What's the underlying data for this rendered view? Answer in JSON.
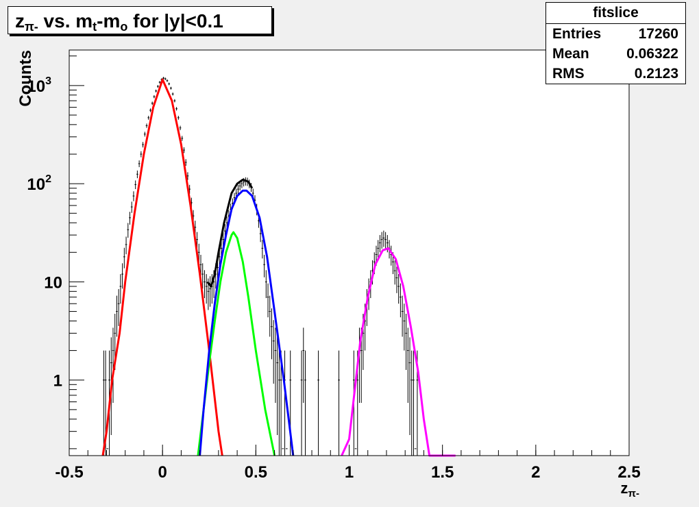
{
  "title": {
    "z_base": "z",
    "z_sub": "π-",
    "middle": " vs. m",
    "t_sub": "t",
    "dash_m": "-m",
    "o_sub": "o",
    "rest": " for |y|<0.1"
  },
  "stats": {
    "name": "fitslice",
    "rows": [
      {
        "key": "Entries",
        "value": "17260"
      },
      {
        "key": "Mean",
        "value": "0.06322"
      },
      {
        "key": "RMS",
        "value": "0.2123"
      }
    ]
  },
  "chart_data": {
    "type": "line",
    "title": "zπ- vs. mt-mo for |y|<0.1",
    "xlabel": "zπ",
    "ylabel": "Counts",
    "xlim": [
      -0.5,
      2.5
    ],
    "ylim": [
      0.17,
      2300
    ],
    "yscale": "log",
    "grid": false,
    "legend": "none",
    "x_ticks": [
      {
        "value": -0.5,
        "label": "-0.5"
      },
      {
        "value": 0,
        "label": "0"
      },
      {
        "value": 0.5,
        "label": "0.5"
      },
      {
        "value": 1,
        "label": "1"
      },
      {
        "value": 1.5,
        "label": "1.5"
      },
      {
        "value": 2,
        "label": "2"
      },
      {
        "value": 2.5,
        "label": "2.5"
      }
    ],
    "y_ticks": [
      {
        "value": 1,
        "label": "1",
        "exp": ""
      },
      {
        "value": 10,
        "label": "10",
        "exp": ""
      },
      {
        "value": 100,
        "label": "10",
        "exp": "2"
      },
      {
        "value": 1000,
        "label": "10",
        "exp": "3"
      }
    ],
    "histogram": {
      "color": "#000000",
      "points": [
        [
          -0.315,
          1
        ],
        [
          -0.305,
          1
        ],
        [
          -0.295,
          0.2
        ],
        [
          -0.285,
          1
        ],
        [
          -0.275,
          1.5
        ],
        [
          -0.265,
          2
        ],
        [
          -0.255,
          3
        ],
        [
          -0.245,
          5
        ],
        [
          -0.235,
          6
        ],
        [
          -0.225,
          9
        ],
        [
          -0.215,
          12
        ],
        [
          -0.205,
          18
        ],
        [
          -0.195,
          24
        ],
        [
          -0.185,
          34
        ],
        [
          -0.175,
          45
        ],
        [
          -0.165,
          58
        ],
        [
          -0.155,
          75
        ],
        [
          -0.145,
          98
        ],
        [
          -0.135,
          125
        ],
        [
          -0.125,
          160
        ],
        [
          -0.115,
          200
        ],
        [
          -0.105,
          250
        ],
        [
          -0.095,
          320
        ],
        [
          -0.085,
          390
        ],
        [
          -0.075,
          470
        ],
        [
          -0.065,
          560
        ],
        [
          -0.055,
          660
        ],
        [
          -0.045,
          770
        ],
        [
          -0.035,
          880
        ],
        [
          -0.025,
          980
        ],
        [
          -0.015,
          1080
        ],
        [
          -0.005,
          1150
        ],
        [
          0.005,
          1190
        ],
        [
          0.015,
          1170
        ],
        [
          0.025,
          1120
        ],
        [
          0.035,
          1040
        ],
        [
          0.045,
          940
        ],
        [
          0.055,
          820
        ],
        [
          0.065,
          700
        ],
        [
          0.075,
          580
        ],
        [
          0.085,
          470
        ],
        [
          0.095,
          370
        ],
        [
          0.105,
          290
        ],
        [
          0.115,
          220
        ],
        [
          0.125,
          165
        ],
        [
          0.135,
          120
        ],
        [
          0.145,
          88
        ],
        [
          0.155,
          64
        ],
        [
          0.165,
          47
        ],
        [
          0.175,
          36
        ],
        [
          0.185,
          27
        ],
        [
          0.195,
          20
        ],
        [
          0.205,
          15
        ],
        [
          0.215,
          12
        ],
        [
          0.225,
          10
        ],
        [
          0.235,
          9
        ],
        [
          0.245,
          8
        ],
        [
          0.255,
          8.5
        ],
        [
          0.265,
          9
        ],
        [
          0.275,
          10
        ],
        [
          0.285,
          12
        ],
        [
          0.295,
          14
        ],
        [
          0.305,
          18
        ],
        [
          0.315,
          22
        ],
        [
          0.325,
          27
        ],
        [
          0.335,
          33
        ],
        [
          0.345,
          40
        ],
        [
          0.355,
          47
        ],
        [
          0.365,
          55
        ],
        [
          0.375,
          63
        ],
        [
          0.385,
          72
        ],
        [
          0.395,
          80
        ],
        [
          0.405,
          88
        ],
        [
          0.415,
          95
        ],
        [
          0.425,
          100
        ],
        [
          0.435,
          104
        ],
        [
          0.445,
          106
        ],
        [
          0.455,
          105
        ],
        [
          0.465,
          100
        ],
        [
          0.475,
          92
        ],
        [
          0.485,
          80
        ],
        [
          0.495,
          68
        ],
        [
          0.505,
          55
        ],
        [
          0.515,
          42
        ],
        [
          0.525,
          31
        ],
        [
          0.535,
          22
        ],
        [
          0.545,
          15
        ],
        [
          0.555,
          10
        ],
        [
          0.565,
          7
        ],
        [
          0.575,
          5
        ],
        [
          0.585,
          3.5
        ],
        [
          0.595,
          2.5
        ],
        [
          0.605,
          2
        ],
        [
          0.615,
          1.5
        ],
        [
          0.625,
          1
        ],
        [
          0.635,
          1
        ],
        [
          0.645,
          0.2
        ],
        [
          0.655,
          1
        ],
        [
          0.665,
          0.2
        ],
        [
          0.685,
          1
        ],
        [
          0.745,
          1
        ],
        [
          0.755,
          2
        ],
        [
          0.765,
          1
        ],
        [
          0.835,
          1
        ],
        [
          0.945,
          1
        ],
        [
          1.025,
          1
        ],
        [
          1.035,
          0.2
        ],
        [
          1.045,
          1
        ],
        [
          1.055,
          2
        ],
        [
          1.065,
          2
        ],
        [
          1.075,
          3
        ],
        [
          1.085,
          4
        ],
        [
          1.095,
          6
        ],
        [
          1.105,
          8
        ],
        [
          1.115,
          10
        ],
        [
          1.125,
          13
        ],
        [
          1.135,
          16
        ],
        [
          1.145,
          19
        ],
        [
          1.155,
          22
        ],
        [
          1.165,
          25
        ],
        [
          1.175,
          27
        ],
        [
          1.185,
          28
        ],
        [
          1.195,
          27
        ],
        [
          1.205,
          25
        ],
        [
          1.215,
          22
        ],
        [
          1.225,
          19
        ],
        [
          1.235,
          16
        ],
        [
          1.245,
          13
        ],
        [
          1.255,
          11
        ],
        [
          1.265,
          9
        ],
        [
          1.275,
          7
        ],
        [
          1.285,
          5
        ],
        [
          1.295,
          4
        ],
        [
          1.305,
          3
        ],
        [
          1.315,
          2
        ],
        [
          1.325,
          1.5
        ],
        [
          1.335,
          1
        ],
        [
          1.345,
          1
        ],
        [
          1.355,
          0.2
        ],
        [
          1.365,
          1
        ]
      ]
    },
    "fits": [
      {
        "color": "#ff0000",
        "points": [
          [
            -0.32,
            0.17
          ],
          [
            -0.3,
            0.3
          ],
          [
            -0.27,
            1
          ],
          [
            -0.23,
            3
          ],
          [
            -0.2,
            10
          ],
          [
            -0.15,
            50
          ],
          [
            -0.1,
            200
          ],
          [
            -0.05,
            600
          ],
          [
            0.0,
            1150
          ],
          [
            0.05,
            700
          ],
          [
            0.1,
            250
          ],
          [
            0.15,
            60
          ],
          [
            0.2,
            12
          ],
          [
            0.25,
            2
          ],
          [
            0.3,
            0.3
          ],
          [
            0.32,
            0.17
          ]
        ]
      },
      {
        "color": "#00ff00",
        "points": [
          [
            0.19,
            0.17
          ],
          [
            0.22,
            0.5
          ],
          [
            0.25,
            1.5
          ],
          [
            0.28,
            4
          ],
          [
            0.31,
            10
          ],
          [
            0.34,
            20
          ],
          [
            0.37,
            30
          ],
          [
            0.38,
            32
          ],
          [
            0.4,
            28
          ],
          [
            0.43,
            16
          ],
          [
            0.46,
            7
          ],
          [
            0.5,
            2
          ],
          [
            0.55,
            0.5
          ],
          [
            0.6,
            0.17
          ]
        ]
      },
      {
        "color": "#0000ff",
        "points": [
          [
            0.2,
            0.17
          ],
          [
            0.22,
            0.5
          ],
          [
            0.25,
            2
          ],
          [
            0.28,
            6
          ],
          [
            0.31,
            15
          ],
          [
            0.34,
            30
          ],
          [
            0.37,
            55
          ],
          [
            0.4,
            75
          ],
          [
            0.43,
            85
          ],
          [
            0.45,
            85
          ],
          [
            0.48,
            75
          ],
          [
            0.52,
            45
          ],
          [
            0.56,
            18
          ],
          [
            0.6,
            5
          ],
          [
            0.65,
            1
          ],
          [
            0.7,
            0.17
          ]
        ]
      },
      {
        "color": "#000000",
        "points": [
          [
            0.24,
            10
          ],
          [
            0.26,
            9
          ],
          [
            0.28,
            12
          ],
          [
            0.3,
            20
          ],
          [
            0.33,
            40
          ],
          [
            0.37,
            80
          ],
          [
            0.4,
            100
          ],
          [
            0.43,
            110
          ],
          [
            0.46,
            105
          ],
          [
            0.48,
            90
          ]
        ]
      },
      {
        "color": "#ff00ff",
        "points": [
          [
            0.96,
            0.17
          ],
          [
            1.0,
            0.25
          ],
          [
            1.03,
            0.8
          ],
          [
            1.06,
            2.5
          ],
          [
            1.1,
            7
          ],
          [
            1.14,
            15
          ],
          [
            1.18,
            21
          ],
          [
            1.21,
            22
          ],
          [
            1.25,
            17
          ],
          [
            1.29,
            9
          ],
          [
            1.33,
            3.5
          ],
          [
            1.37,
            1.2
          ],
          [
            1.4,
            0.4
          ],
          [
            1.43,
            0.17
          ],
          [
            1.57,
            0.17
          ]
        ]
      }
    ]
  }
}
